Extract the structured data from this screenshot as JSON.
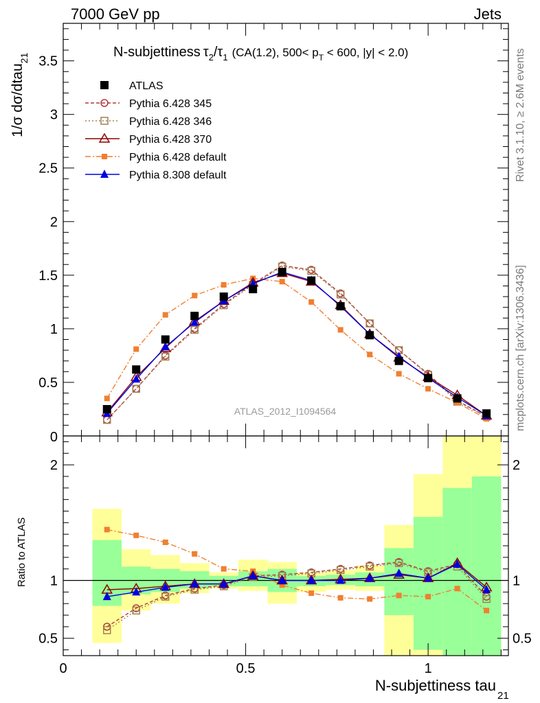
{
  "header": {
    "left": "7000 GeV pp",
    "right": "Jets"
  },
  "side_labels": {
    "rivet": "Rivet 3.1.10, ≥ 2.6M events",
    "mcplots": "mcplots.cern.ch [arXiv:1306.3436]"
  },
  "watermark": "ATLAS_2012_I1094564",
  "plot_title": {
    "main": "N-subjettiness",
    "detail": "(CA(1.2), 500< p",
    "detail_end": " < 600, |y| < 2.0)"
  },
  "axis_labels": {
    "ylabel_main": "1/σ dσ/dtau",
    "ylabel_sub": "21",
    "ylabel_ratio": "Ratio to ATLAS",
    "xlabel_main": "N-subjettiness tau",
    "xlabel_sub": "21"
  },
  "colors": {
    "data": "#000000",
    "p345": "#b03a3a",
    "p346": "#a08050",
    "p370": "#8b0000",
    "pdef": "#f07f30",
    "p8": "#0000e0",
    "band_yellow": "#ffff99",
    "band_green": "#99ff99"
  },
  "chart_data": [
    {
      "type": "scatter",
      "panel": "main",
      "xlim": [
        0,
        1.22
      ],
      "ylim": [
        0,
        3.85
      ],
      "yticks": [
        0.5,
        1,
        1.5,
        2,
        2.5,
        3,
        3.5
      ],
      "ytick_labels": [
        "0.5",
        "1",
        "1.5",
        "2",
        "2.5",
        "3",
        "3.5"
      ],
      "x": [
        0.12,
        0.2,
        0.28,
        0.36,
        0.44,
        0.52,
        0.6,
        0.68,
        0.76,
        0.84,
        0.92,
        1.0,
        1.08,
        1.16
      ],
      "legend_position": "top-left",
      "series": [
        {
          "name": "ATLAS",
          "style": "data",
          "values": [
            0.25,
            0.62,
            0.9,
            1.12,
            1.3,
            1.37,
            1.53,
            1.45,
            1.21,
            0.94,
            0.7,
            0.54,
            0.35,
            0.21
          ]
        },
        {
          "name": "Pythia 6.428 345",
          "style": "p345",
          "values": [
            0.15,
            0.44,
            0.75,
            1.0,
            1.23,
            1.42,
            1.59,
            1.55,
            1.33,
            1.05,
            0.8,
            0.58,
            0.33,
            0.18
          ]
        },
        {
          "name": "Pythia 6.428 346",
          "style": "p346",
          "values": [
            0.15,
            0.44,
            0.74,
            0.99,
            1.22,
            1.41,
            1.58,
            1.54,
            1.32,
            1.05,
            0.8,
            0.57,
            0.32,
            0.18
          ]
        },
        {
          "name": "Pythia 6.428 370",
          "style": "p370",
          "values": [
            0.22,
            0.55,
            0.82,
            1.07,
            1.26,
            1.43,
            1.52,
            1.44,
            1.22,
            0.95,
            0.73,
            0.55,
            0.38,
            0.19
          ]
        },
        {
          "name": "Pythia 6.428 default",
          "style": "pdef",
          "values": [
            0.35,
            0.81,
            1.13,
            1.31,
            1.41,
            1.47,
            1.44,
            1.25,
            0.99,
            0.76,
            0.58,
            0.44,
            0.31,
            0.16
          ]
        },
        {
          "name": "Pythia 8.308 default",
          "style": "p8",
          "values": [
            0.21,
            0.53,
            0.83,
            1.06,
            1.26,
            1.42,
            1.53,
            1.45,
            1.21,
            0.95,
            0.74,
            0.54,
            0.36,
            0.19
          ]
        }
      ]
    },
    {
      "type": "line",
      "panel": "ratio",
      "xlim": [
        0,
        1.22
      ],
      "ylim": [
        0.35,
        2.25
      ],
      "yticks": [
        0.5,
        1,
        2
      ],
      "ytick_labels": [
        "0.5",
        "1",
        "2"
      ],
      "xticks": [
        0,
        0.5,
        1
      ],
      "xtick_labels": [
        "0",
        "0.5",
        "1"
      ],
      "x": [
        0.12,
        0.2,
        0.28,
        0.36,
        0.44,
        0.52,
        0.6,
        0.68,
        0.76,
        0.84,
        0.92,
        1.0,
        1.08,
        1.16
      ],
      "bands": {
        "edges": [
          0.08,
          0.16,
          0.24,
          0.32,
          0.4,
          0.48,
          0.56,
          0.64,
          0.72,
          0.8,
          0.88,
          0.96,
          1.04,
          1.12,
          1.2
        ],
        "yellow_low": [
          0.46,
          0.74,
          0.8,
          0.89,
          0.93,
          0.91,
          0.8,
          0.9,
          0.92,
          0.91,
          0.2,
          0.2,
          0.2,
          0.2
        ],
        "yellow_high": [
          1.62,
          1.27,
          1.22,
          1.15,
          1.07,
          1.18,
          1.16,
          1.07,
          1.09,
          1.13,
          1.48,
          1.92,
          2.4,
          2.4
        ],
        "green_low": [
          0.78,
          0.88,
          0.9,
          0.93,
          0.95,
          0.95,
          0.9,
          0.95,
          0.96,
          0.95,
          0.7,
          0.4,
          0.3,
          0.3
        ],
        "green_high": [
          1.35,
          1.12,
          1.1,
          1.08,
          1.04,
          1.08,
          1.1,
          1.04,
          1.05,
          1.07,
          1.28,
          1.55,
          1.8,
          1.9
        ]
      },
      "series": [
        {
          "name": "Pythia 6.428 345",
          "style": "p345",
          "values": [
            0.6,
            0.76,
            0.87,
            0.93,
            0.96,
            1.04,
            1.05,
            1.07,
            1.1,
            1.13,
            1.16,
            1.08,
            1.14,
            0.86
          ]
        },
        {
          "name": "Pythia 6.428 346",
          "style": "p346",
          "values": [
            0.57,
            0.74,
            0.86,
            0.92,
            0.95,
            1.03,
            1.04,
            1.06,
            1.09,
            1.12,
            1.15,
            1.07,
            1.12,
            0.84
          ]
        },
        {
          "name": "Pythia 6.428 370",
          "style": "p370",
          "values": [
            0.92,
            0.93,
            0.95,
            0.97,
            0.97,
            1.04,
            1.0,
            1.0,
            1.01,
            1.02,
            1.05,
            1.02,
            1.15,
            0.94
          ]
        },
        {
          "name": "Pythia 6.428 default",
          "style": "pdef",
          "values": [
            1.44,
            1.39,
            1.33,
            1.23,
            1.1,
            1.08,
            0.96,
            0.89,
            0.85,
            0.84,
            0.87,
            0.86,
            0.93,
            0.74
          ]
        },
        {
          "name": "Pythia 8.308 default",
          "style": "p8",
          "values": [
            0.86,
            0.9,
            0.94,
            0.97,
            0.97,
            1.04,
            1.0,
            1.0,
            1.0,
            1.02,
            1.06,
            1.02,
            1.14,
            0.92
          ]
        }
      ]
    }
  ]
}
